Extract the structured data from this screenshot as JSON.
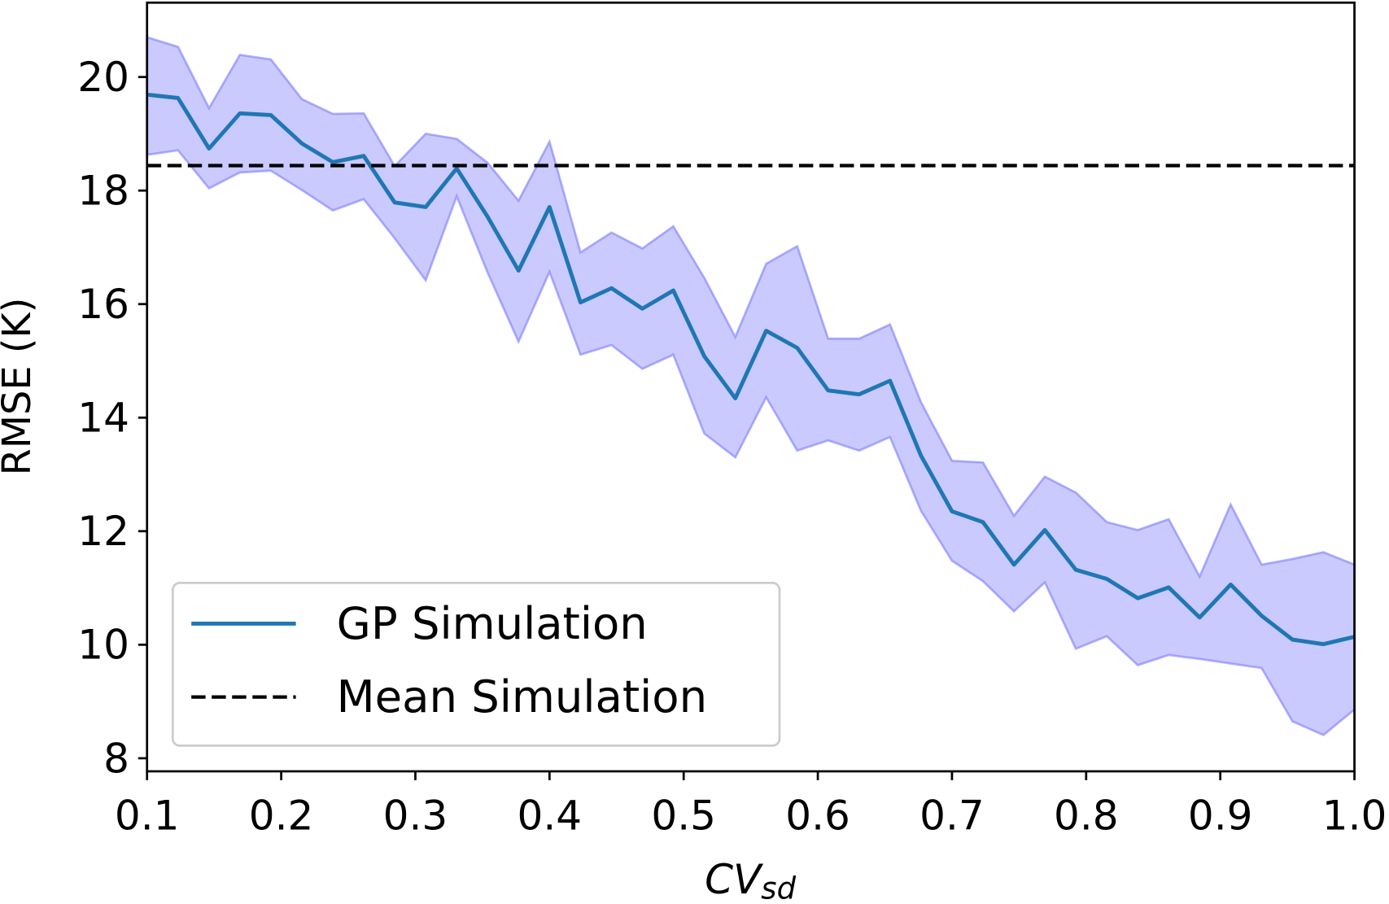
{
  "chart_data": {
    "type": "line",
    "x_label": "CV",
    "x_label_subscript": "sd",
    "y_label": "RMSE (K)",
    "x": [
      0.1,
      0.1231,
      0.1462,
      0.1692,
      0.1923,
      0.2154,
      0.2385,
      0.2615,
      0.2846,
      0.3077,
      0.3308,
      0.3538,
      0.3769,
      0.4,
      0.4231,
      0.4462,
      0.4692,
      0.4923,
      0.5154,
      0.5385,
      0.5615,
      0.5846,
      0.6077,
      0.6308,
      0.6538,
      0.6769,
      0.7,
      0.7231,
      0.7462,
      0.7692,
      0.7923,
      0.8154,
      0.8385,
      0.8615,
      0.8846,
      0.9077,
      0.9308,
      0.9538,
      0.9769,
      1.0
    ],
    "series": [
      {
        "name": "GP Simulation",
        "color": "#1f77b4",
        "band_color": "#7b7bff",
        "values": [
          19.69,
          19.63,
          18.74,
          19.36,
          19.33,
          18.83,
          18.5,
          18.61,
          17.79,
          17.71,
          18.39,
          17.54,
          16.59,
          17.71,
          16.03,
          16.28,
          15.92,
          16.24,
          15.08,
          14.34,
          15.53,
          15.23,
          14.48,
          14.41,
          14.65,
          13.33,
          12.35,
          12.16,
          11.41,
          12.02,
          11.32,
          11.16,
          10.82,
          11.01,
          10.48,
          11.06,
          10.51,
          10.09,
          10.01,
          10.14
        ],
        "upper": [
          20.7,
          20.53,
          19.45,
          20.39,
          20.31,
          19.61,
          19.35,
          19.36,
          18.43,
          19.0,
          18.91,
          18.49,
          17.82,
          18.86,
          16.91,
          17.26,
          16.98,
          17.37,
          16.46,
          15.42,
          16.71,
          17.02,
          15.39,
          15.39,
          15.64,
          14.27,
          13.24,
          13.21,
          12.27,
          12.96,
          12.68,
          12.16,
          12.02,
          12.21,
          11.2,
          12.47,
          11.41,
          11.51,
          11.63,
          11.41
        ],
        "lower": [
          18.63,
          18.71,
          18.04,
          18.32,
          18.35,
          18.01,
          17.65,
          17.85,
          17.16,
          16.42,
          17.9,
          16.56,
          15.34,
          16.57,
          15.11,
          15.28,
          14.86,
          15.11,
          13.72,
          13.3,
          14.36,
          13.42,
          13.6,
          13.42,
          13.66,
          12.36,
          11.48,
          11.12,
          10.59,
          11.1,
          9.93,
          10.15,
          9.64,
          9.82,
          9.75,
          9.67,
          9.59,
          8.65,
          8.41,
          8.86
        ]
      },
      {
        "name": "Mean Simulation",
        "color": "#000000",
        "dashed": true,
        "value": 18.44
      }
    ],
    "xlim": [
      0.1,
      1.0
    ],
    "ylim": [
      7.77,
      21.31
    ],
    "xticks": [
      0.1,
      0.2,
      0.3,
      0.4,
      0.5,
      0.6,
      0.7,
      0.8,
      0.9,
      {
        "value": 1.0,
        "label": "1.0"
      }
    ],
    "yticks": [
      8,
      10,
      12,
      14,
      16,
      18,
      20
    ],
    "grid": false,
    "legend": "lower left"
  }
}
